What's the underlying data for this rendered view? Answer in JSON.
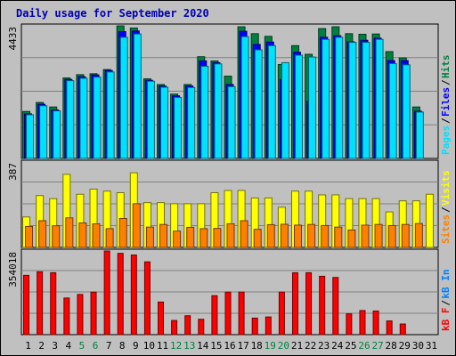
{
  "chart_data": [
    {
      "type": "bar",
      "title": "Daily usage for September 2020",
      "categories": [
        "1",
        "2",
        "3",
        "4",
        "5",
        "6",
        "7",
        "8",
        "9",
        "10",
        "11",
        "12",
        "13",
        "14",
        "15",
        "16",
        "17",
        "18",
        "19",
        "20",
        "21",
        "22",
        "23",
        "24",
        "25",
        "26",
        "27",
        "28",
        "29",
        "30",
        "31"
      ],
      "weekend_days": [
        "5",
        "6",
        "12",
        "13",
        "19",
        "20",
        "26",
        "27"
      ],
      "panels": [
        {
          "id": "hits-files-pages",
          "ymax_label": "4433",
          "ylim": [
            0,
            4433
          ],
          "legend": [
            {
              "label": "Pages",
              "color": "#00e0ff"
            },
            {
              "label": "Files",
              "color": "#0000ff"
            },
            {
              "label": "Hits",
              "color": "#008040"
            }
          ],
          "series": [
            {
              "name": "Hits",
              "color": "#008040",
              "values": [
                1570,
                1870,
                1720,
                2690,
                2800,
                2830,
                2970,
                4430,
                4360,
                2660,
                2470,
                2150,
                2470,
                3400,
                3260,
                2750,
                4400,
                4170,
                4080,
                3140,
                3770,
                3480,
                4340,
                4400,
                4170,
                4150,
                4160,
                3570,
                3360,
                1720,
                0
              ]
            },
            {
              "name": "Files",
              "color": "#0000ff",
              "values": [
                1490,
                1810,
                1620,
                2640,
                2730,
                2790,
                2940,
                4240,
                4260,
                2610,
                2420,
                2090,
                2420,
                3260,
                3200,
                2470,
                4250,
                3810,
                3890,
                2640,
                3550,
                1910,
                4050,
                4100,
                3900,
                3950,
                4020,
                3270,
                3270,
                1580,
                0
              ]
            },
            {
              "name": "Pages",
              "color": "#00e0ff",
              "values": [
                1460,
                1760,
                1590,
                2600,
                2680,
                2720,
                2890,
                4050,
                4160,
                2580,
                2380,
                2040,
                2370,
                3080,
                3160,
                2400,
                4070,
                3630,
                3770,
                3200,
                3450,
                3390,
                3980,
                4050,
                3880,
                3880,
                3980,
                3170,
                3130,
                1550,
                0
              ]
            }
          ]
        },
        {
          "id": "sites-visits",
          "ymax_label": "387",
          "ylim": [
            0,
            387
          ],
          "legend": [
            {
              "label": "Sites",
              "color": "#ff8000"
            },
            {
              "label": "Visits",
              "color": "#ffff00"
            }
          ],
          "series": [
            {
              "name": "Visits",
              "color": "#ffff00",
              "values": [
                138,
                235,
                221,
                331,
                241,
                264,
                255,
                248,
                338,
                203,
                203,
                198,
                198,
                198,
                248,
                258,
                258,
                224,
                224,
                182,
                255,
                255,
                238,
                238,
                221,
                221,
                221,
                161,
                211,
                211,
                241
              ]
            },
            {
              "name": "Sites",
              "color": "#ff8000",
              "values": [
                95,
                121,
                98,
                134,
                111,
                107,
                85,
                131,
                198,
                92,
                104,
                74,
                91,
                85,
                86,
                107,
                121,
                82,
                103,
                105,
                101,
                104,
                99,
                92,
                79,
                101,
                104,
                99,
                104,
                108,
                0
              ]
            }
          ]
        },
        {
          "id": "kb-f-in",
          "ymax_label": "354018",
          "ylim": [
            0,
            354018
          ],
          "legend": [
            {
              "label": "kB F",
              "color": "#ff0000"
            },
            {
              "label": "kB In",
              "color": "#0080ff"
            }
          ],
          "series": [
            {
              "name": "kB F",
              "color": "#ff0000",
              "values": [
                251000,
                266000,
                262000,
                155000,
                170000,
                180000,
                354018,
                344000,
                337000,
                308000,
                138000,
                60000,
                80000,
                65000,
                165000,
                180000,
                180000,
                70000,
                75000,
                180000,
                262000,
                262000,
                247000,
                242000,
                88000,
                102000,
                100000,
                58000,
                45000,
                0,
                0
              ]
            }
          ]
        }
      ]
    }
  ]
}
